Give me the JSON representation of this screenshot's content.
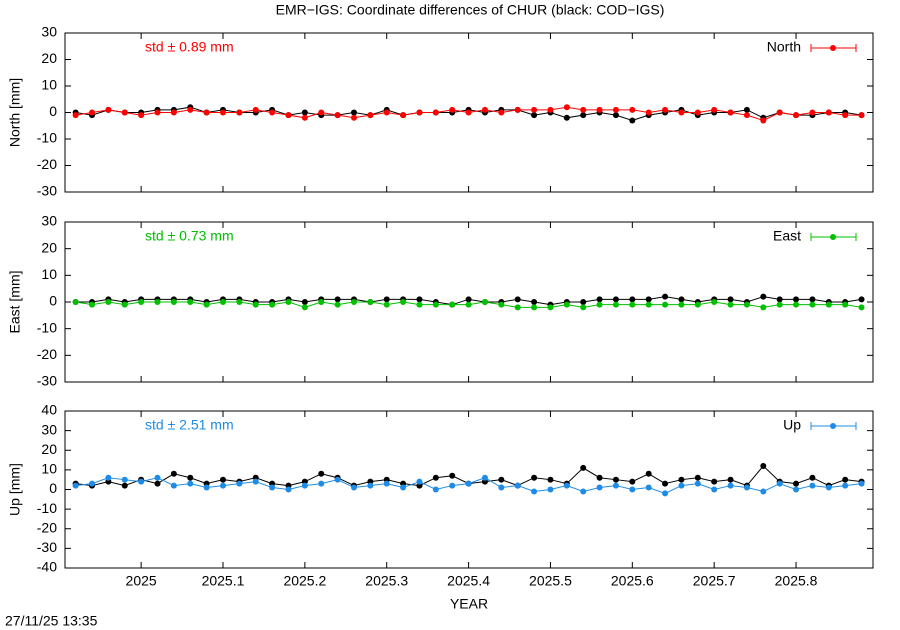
{
  "title": "EMR−IGS: Coordinate differences of CHUR (black: COD−IGS)",
  "timestamp": "27/11/25 13:35",
  "chart_data": [
    {
      "type": "line",
      "ylabel": "North [mm]",
      "ylim": [
        -30,
        30
      ],
      "yticks": [
        -30,
        -20,
        -10,
        0,
        10,
        20,
        30
      ],
      "xlim": [
        2024.907,
        2025.894
      ],
      "xticks": [
        2025,
        2025.1,
        2025.2,
        2025.3,
        2025.4,
        2025.5,
        2025.6,
        2025.7,
        2025.8
      ],
      "show_xtick_labels": false,
      "annotation": {
        "text": "std ± 0.89 mm",
        "color": "#ff0000"
      },
      "legend": "top-right",
      "x": [
        2024.92,
        2024.94,
        2024.96,
        2024.98,
        2025.0,
        2025.02,
        2025.04,
        2025.06,
        2025.08,
        2025.1,
        2025.12,
        2025.14,
        2025.16,
        2025.18,
        2025.2,
        2025.22,
        2025.24,
        2025.26,
        2025.28,
        2025.3,
        2025.32,
        2025.34,
        2025.36,
        2025.38,
        2025.4,
        2025.42,
        2025.44,
        2025.46,
        2025.48,
        2025.5,
        2025.52,
        2025.54,
        2025.56,
        2025.58,
        2025.6,
        2025.62,
        2025.64,
        2025.66,
        2025.68,
        2025.7,
        2025.72,
        2025.74,
        2025.76,
        2025.78,
        2025.8,
        2025.82,
        2025.84,
        2025.86,
        2025.88
      ],
      "series": [
        {
          "color": "#000000",
          "values": [
            0,
            -1,
            1,
            0,
            0,
            1,
            1,
            2,
            0,
            1,
            0,
            0,
            1,
            -1,
            0,
            -1,
            -1,
            0,
            -1,
            1,
            -1,
            0,
            0,
            0,
            1,
            0,
            1,
            1,
            -1,
            0,
            -2,
            -1,
            0,
            -1,
            -3,
            -1,
            0,
            1,
            -1,
            0,
            0,
            1,
            -2,
            0,
            -1,
            -1,
            0,
            0,
            -1
          ]
        },
        {
          "name": "North",
          "color": "#ff0000",
          "values": [
            -1,
            0,
            1,
            0,
            -1,
            0,
            0,
            1,
            0,
            0,
            0,
            1,
            0,
            -1,
            -2,
            0,
            -1,
            -2,
            -1,
            0,
            -1,
            0,
            0,
            1,
            0,
            1,
            0,
            1,
            1,
            1,
            2,
            1,
            1,
            1,
            1,
            0,
            1,
            0,
            0,
            1,
            0,
            -1,
            -3,
            0,
            -1,
            0,
            0,
            -1,
            -1
          ]
        }
      ]
    },
    {
      "type": "line",
      "ylabel": "East [mm]",
      "ylim": [
        -30,
        30
      ],
      "yticks": [
        -30,
        -20,
        -10,
        0,
        10,
        20,
        30
      ],
      "xlim": [
        2024.907,
        2025.894
      ],
      "xticks": [
        2025,
        2025.1,
        2025.2,
        2025.3,
        2025.4,
        2025.5,
        2025.6,
        2025.7,
        2025.8
      ],
      "show_xtick_labels": false,
      "annotation": {
        "text": "std ± 0.73 mm",
        "color": "#00c000"
      },
      "legend": "top-right",
      "x": [
        2024.92,
        2024.94,
        2024.96,
        2024.98,
        2025.0,
        2025.02,
        2025.04,
        2025.06,
        2025.08,
        2025.1,
        2025.12,
        2025.14,
        2025.16,
        2025.18,
        2025.2,
        2025.22,
        2025.24,
        2025.26,
        2025.28,
        2025.3,
        2025.32,
        2025.34,
        2025.36,
        2025.38,
        2025.4,
        2025.42,
        2025.44,
        2025.46,
        2025.48,
        2025.5,
        2025.52,
        2025.54,
        2025.56,
        2025.58,
        2025.6,
        2025.62,
        2025.64,
        2025.66,
        2025.68,
        2025.7,
        2025.72,
        2025.74,
        2025.76,
        2025.78,
        2025.8,
        2025.82,
        2025.84,
        2025.86,
        2025.88
      ],
      "series": [
        {
          "color": "#000000",
          "values": [
            0,
            0,
            1,
            0,
            1,
            1,
            1,
            1,
            0,
            1,
            1,
            0,
            0,
            1,
            0,
            1,
            1,
            1,
            0,
            1,
            1,
            1,
            0,
            -1,
            1,
            0,
            0,
            1,
            0,
            -1,
            0,
            0,
            1,
            1,
            1,
            1,
            2,
            1,
            0,
            1,
            1,
            0,
            2,
            1,
            1,
            1,
            0,
            0,
            1
          ]
        },
        {
          "name": "East",
          "color": "#00c000",
          "values": [
            0,
            -1,
            0,
            -1,
            0,
            0,
            0,
            0,
            -1,
            0,
            0,
            -1,
            -1,
            0,
            -2,
            0,
            -1,
            0,
            0,
            -1,
            0,
            -1,
            -1,
            -1,
            -1,
            0,
            -1,
            -2,
            -2,
            -2,
            -1,
            -2,
            -1,
            -1,
            -1,
            -1,
            -1,
            -1,
            -1,
            0,
            -1,
            -1,
            -2,
            -1,
            -1,
            -1,
            -1,
            -1,
            -2
          ]
        }
      ]
    },
    {
      "type": "line",
      "ylabel": "Up [mm]",
      "ylim": [
        -40,
        40
      ],
      "yticks": [
        -40,
        -30,
        -20,
        -10,
        0,
        10,
        20,
        30,
        40
      ],
      "xlim": [
        2024.907,
        2025.894
      ],
      "xticks": [
        2025,
        2025.1,
        2025.2,
        2025.3,
        2025.4,
        2025.5,
        2025.6,
        2025.7,
        2025.8
      ],
      "show_xtick_labels": true,
      "xlabel": "YEAR",
      "annotation": {
        "text": "std ± 2.51 mm",
        "color": "#1e8ce6"
      },
      "legend": "top-right",
      "x": [
        2024.92,
        2024.94,
        2024.96,
        2024.98,
        2025.0,
        2025.02,
        2025.04,
        2025.06,
        2025.08,
        2025.1,
        2025.12,
        2025.14,
        2025.16,
        2025.18,
        2025.2,
        2025.22,
        2025.24,
        2025.26,
        2025.28,
        2025.3,
        2025.32,
        2025.34,
        2025.36,
        2025.38,
        2025.4,
        2025.42,
        2025.44,
        2025.46,
        2025.48,
        2025.5,
        2025.52,
        2025.54,
        2025.56,
        2025.58,
        2025.6,
        2025.62,
        2025.64,
        2025.66,
        2025.68,
        2025.7,
        2025.72,
        2025.74,
        2025.76,
        2025.78,
        2025.8,
        2025.82,
        2025.84,
        2025.86,
        2025.88
      ],
      "series": [
        {
          "color": "#000000",
          "values": [
            3,
            2,
            4,
            2,
            5,
            3,
            8,
            6,
            3,
            5,
            4,
            6,
            3,
            2,
            4,
            8,
            6,
            2,
            4,
            5,
            3,
            2,
            6,
            7,
            3,
            4,
            5,
            2,
            6,
            5,
            3,
            11,
            6,
            5,
            4,
            8,
            3,
            5,
            6,
            4,
            5,
            2,
            12,
            4,
            3,
            6,
            2,
            5,
            4
          ]
        },
        {
          "name": "Up",
          "color": "#1e8ce6",
          "values": [
            2,
            3,
            6,
            5,
            4,
            6,
            2,
            3,
            1,
            2,
            3,
            4,
            1,
            0,
            2,
            3,
            5,
            1,
            2,
            3,
            1,
            4,
            0,
            2,
            3,
            6,
            1,
            2,
            -1,
            0,
            2,
            -1,
            1,
            2,
            0,
            1,
            -2,
            2,
            3,
            0,
            2,
            1,
            -1,
            3,
            0,
            2,
            1,
            2,
            3
          ]
        }
      ]
    }
  ]
}
